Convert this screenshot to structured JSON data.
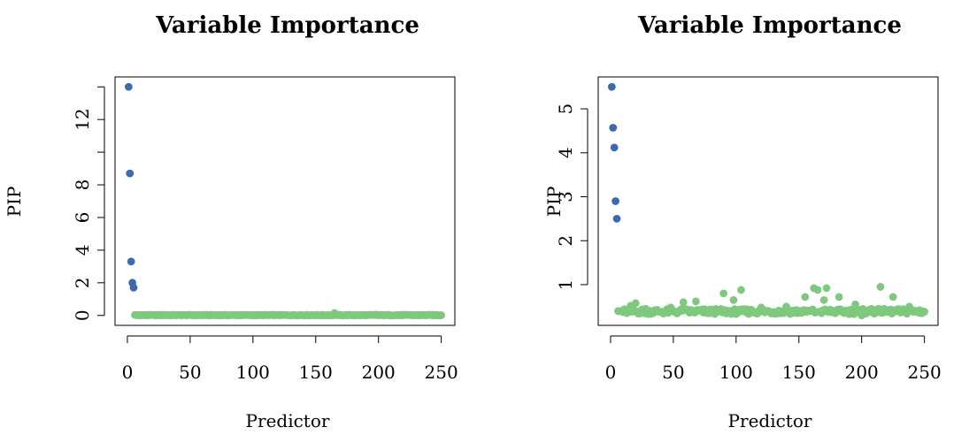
{
  "colors": {
    "top_predictors": "#3a6baf",
    "other_predictors": "#7fc97f"
  },
  "chart_data": [
    {
      "type": "scatter",
      "title": "Variable Importance",
      "xlabel": "Predictor",
      "ylabel": "PIP",
      "xlim": [
        1,
        250
      ],
      "ylim": [
        0,
        14
      ],
      "x_ticks": [
        0,
        50,
        100,
        150,
        200,
        250
      ],
      "y_ticks": [
        0,
        2,
        4,
        6,
        8,
        12
      ],
      "y_minor_ticks": [
        10,
        14
      ],
      "grid": false,
      "legend": "none",
      "series": [
        {
          "color": "#3a6baf",
          "points": [
            [
              1,
              14.0
            ],
            [
              2,
              8.7
            ],
            [
              3,
              3.3
            ],
            [
              4,
              2.0
            ],
            [
              5,
              1.7
            ]
          ]
        },
        {
          "color": "#7fc97f",
          "x_range": [
            6,
            250
          ],
          "y_baseline": 0.0,
          "points": [
            [
              165,
              0.15
            ],
            [
              198,
              0.05
            ],
            [
              30,
              0.03
            ],
            [
              120,
              0.03
            ],
            [
              220,
              0.04
            ]
          ]
        }
      ]
    },
    {
      "type": "scatter",
      "title": "Variable Importance",
      "xlabel": "Predictor",
      "ylabel": "PIP",
      "xlim": [
        1,
        250
      ],
      "ylim": [
        0.3,
        5.5
      ],
      "x_ticks": [
        0,
        50,
        100,
        150,
        200,
        250
      ],
      "y_ticks": [
        1,
        2,
        3,
        4,
        5
      ],
      "grid": false,
      "legend": "none",
      "series": [
        {
          "color": "#3a6baf",
          "points": [
            [
              1,
              5.5
            ],
            [
              2,
              4.57
            ],
            [
              3,
              4.12
            ],
            [
              4,
              2.9
            ],
            [
              5,
              2.5
            ]
          ]
        },
        {
          "color": "#7fc97f",
          "x_range": [
            6,
            250
          ],
          "y_baseline": 0.33,
          "points": [
            [
              16,
              0.52
            ],
            [
              20,
              0.58
            ],
            [
              28,
              0.45
            ],
            [
              48,
              0.48
            ],
            [
              58,
              0.6
            ],
            [
              68,
              0.62
            ],
            [
              78,
              0.35
            ],
            [
              90,
              0.8
            ],
            [
              98,
              0.65
            ],
            [
              104,
              0.88
            ],
            [
              120,
              0.48
            ],
            [
              140,
              0.5
            ],
            [
              155,
              0.72
            ],
            [
              162,
              0.92
            ],
            [
              165,
              0.88
            ],
            [
              170,
              0.65
            ],
            [
              172,
              0.92
            ],
            [
              182,
              0.72
            ],
            [
              195,
              0.55
            ],
            [
              200,
              0.3
            ],
            [
              208,
              0.45
            ],
            [
              215,
              0.95
            ],
            [
              225,
              0.72
            ],
            [
              238,
              0.5
            ],
            [
              246,
              0.42
            ]
          ]
        }
      ]
    }
  ]
}
